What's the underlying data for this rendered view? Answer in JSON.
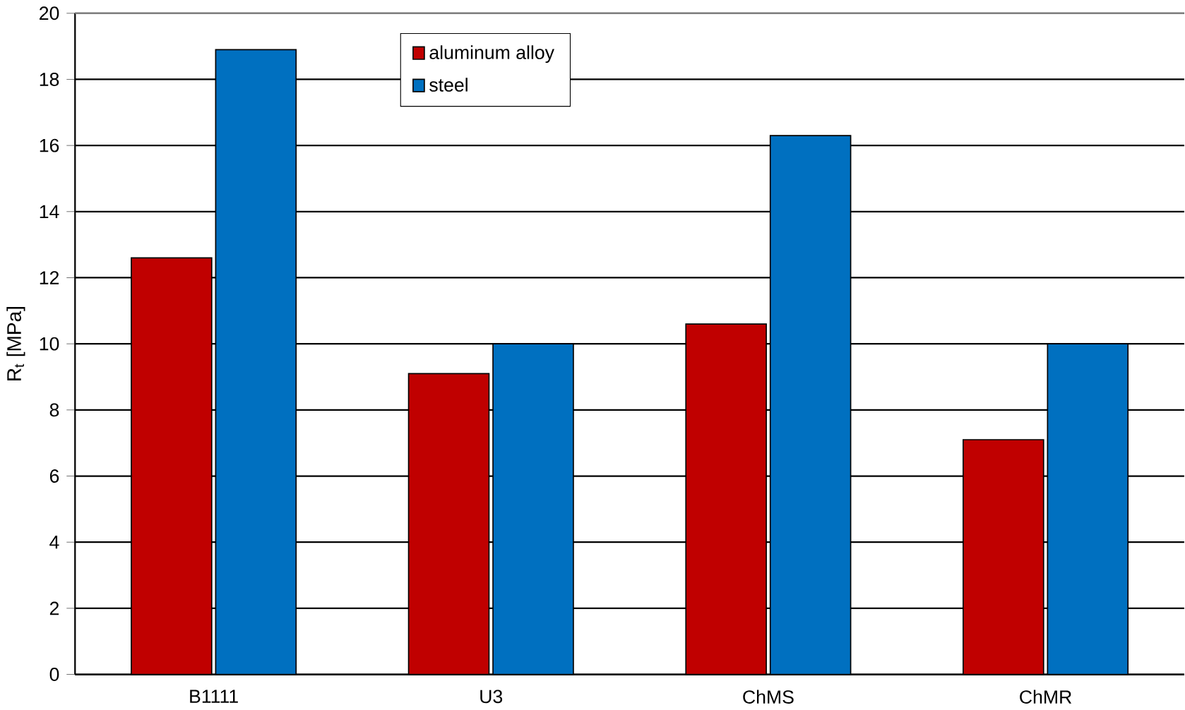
{
  "chart_data": {
    "type": "bar",
    "ylabel": "R$_{t}$ [MPa]",
    "categories": [
      "B1111",
      "U3",
      "ChMS",
      "ChMR"
    ],
    "series": [
      {
        "name": "aluminum alloy",
        "color": "#c00000",
        "values": [
          12.6,
          9.1,
          10.6,
          7.1
        ]
      },
      {
        "name": "steel",
        "color": "#0070c0",
        "values": [
          18.9,
          10.0,
          16.3,
          10.0
        ]
      }
    ],
    "ylim": [
      0,
      20
    ],
    "yticks": [
      0,
      2,
      4,
      6,
      8,
      10,
      12,
      14,
      16,
      18,
      20
    ],
    "grid": "y",
    "legend": "top"
  }
}
